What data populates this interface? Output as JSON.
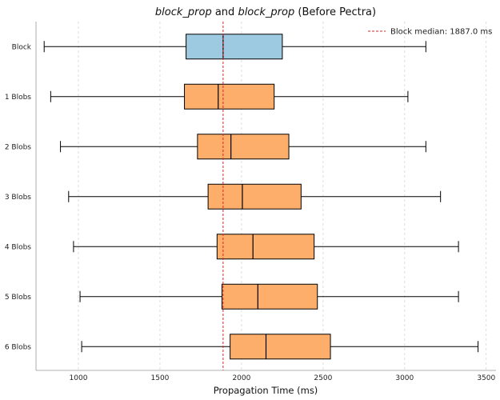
{
  "chart_data": {
    "type": "box",
    "orientation": "horizontal",
    "title": {
      "parts": [
        {
          "text": "block_prop",
          "italic": true
        },
        {
          "text": " and ",
          "italic": false
        },
        {
          "text": "block_prop",
          "italic": true
        },
        {
          "text": " (Before Pectra)",
          "italic": false
        }
      ]
    },
    "xlabel": "Propagation Time (ms)",
    "xlim": [
      740,
      3560
    ],
    "xticks": [
      1000,
      1500,
      2000,
      2500,
      3000,
      3500
    ],
    "grid": "x-dashed",
    "legend_position": "top-right",
    "reference_line": {
      "value": 1887.0,
      "label": "Block median: 1887.0 ms",
      "color": "#d62728"
    },
    "categories": [
      "Block",
      "1 Blobs",
      "2 Blobs",
      "3 Blobs",
      "4 Blobs",
      "5 Blobs",
      "6 Blobs"
    ],
    "boxes": [
      {
        "category": "Block",
        "whisker_low": 790,
        "q1": 1660,
        "median": 1887,
        "q3": 2250,
        "whisker_high": 3130,
        "color": "#9ecae1"
      },
      {
        "category": "1 Blobs",
        "whisker_low": 830,
        "q1": 1650,
        "median": 1857,
        "q3": 2200,
        "whisker_high": 3020,
        "color": "#fdae6b"
      },
      {
        "category": "2 Blobs",
        "whisker_low": 890,
        "q1": 1730,
        "median": 1935,
        "q3": 2290,
        "whisker_high": 3130,
        "color": "#fdae6b"
      },
      {
        "category": "3 Blobs",
        "whisker_low": 940,
        "q1": 1795,
        "median": 2005,
        "q3": 2365,
        "whisker_high": 3220,
        "color": "#fdae6b"
      },
      {
        "category": "4 Blobs",
        "whisker_low": 970,
        "q1": 1850,
        "median": 2070,
        "q3": 2445,
        "whisker_high": 3330,
        "color": "#fdae6b"
      },
      {
        "category": "5 Blobs",
        "whisker_low": 1010,
        "q1": 1880,
        "median": 2100,
        "q3": 2465,
        "whisker_high": 3330,
        "color": "#fdae6b"
      },
      {
        "category": "6 Blobs",
        "whisker_low": 1020,
        "q1": 1930,
        "median": 2150,
        "q3": 2545,
        "whisker_high": 3450,
        "color": "#fdae6b"
      }
    ]
  }
}
